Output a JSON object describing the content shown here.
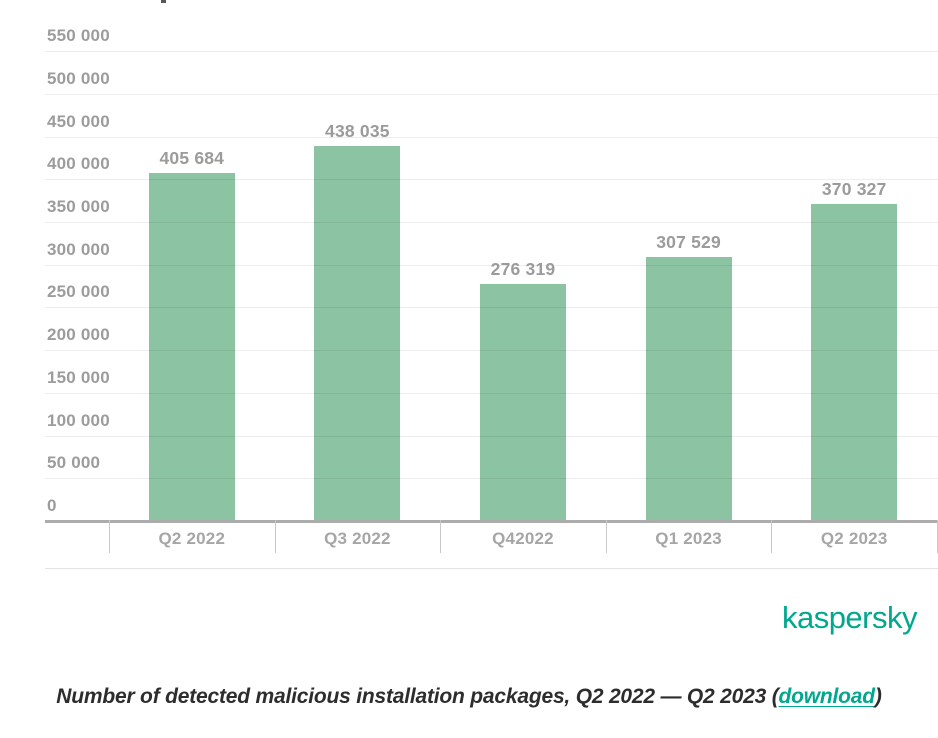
{
  "chart_data": {
    "type": "bar",
    "categories": [
      "Q2 2022",
      "Q3 2022",
      "Q42022",
      "Q1 2023",
      "Q2 2023"
    ],
    "values": [
      405684,
      438035,
      276319,
      307529,
      370327
    ],
    "value_labels": [
      "405 684",
      "438 035",
      "276 319",
      "307 529",
      "370 327"
    ],
    "title": "",
    "xlabel": "",
    "ylabel": "",
    "ylim": [
      0,
      550000
    ],
    "ytick_step": 50000,
    "ytick_labels": [
      "0",
      "50 000",
      "100 000",
      "150 000",
      "200 000",
      "250 000",
      "300 000",
      "350 000",
      "400 000",
      "450 000",
      "500 000",
      "550 000"
    ],
    "grid": true,
    "legend": false,
    "colors": {
      "bar": "#8cc3a2",
      "axis_line": "#acacac",
      "tick_line": "#c9c9c9",
      "y_label": "#9c9c9c",
      "x_label": "#a6a6a6",
      "value_label": "#9b9b9b"
    }
  },
  "branding": {
    "logo_text": "kaspersky",
    "logo_color": "#00a88e"
  },
  "caption": {
    "text_before_link": "Number of detected malicious installation packages, Q2 2022 — Q2 2023 (",
    "link_text": "download",
    "text_after_link": ")",
    "text_color": "#2d2d2d",
    "link_color": "#00a88e"
  }
}
